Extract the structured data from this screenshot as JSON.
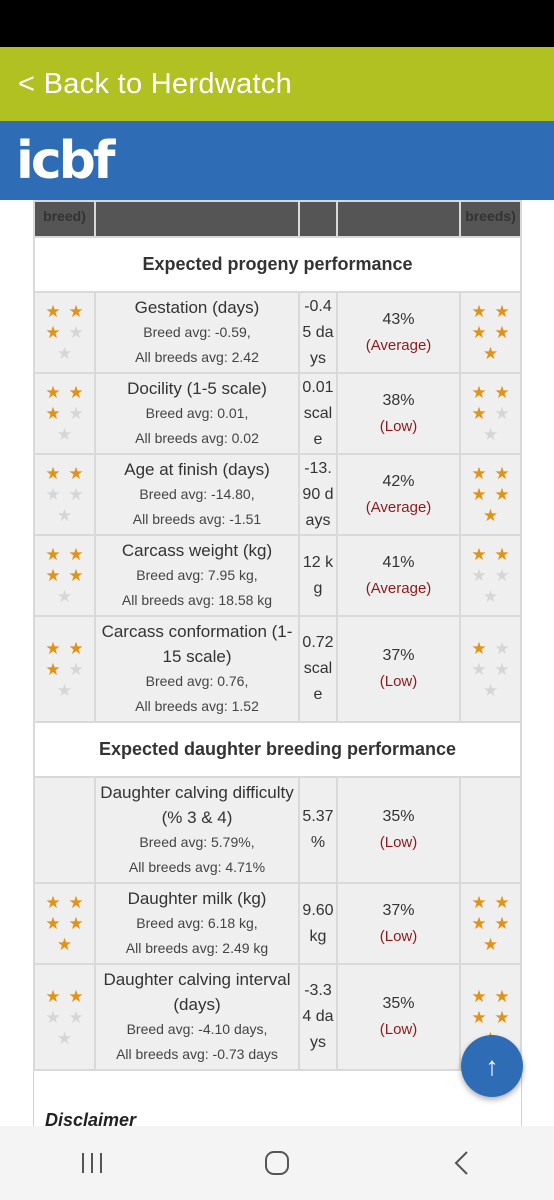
{
  "header": {
    "back_label": "< Back to Herdwatch",
    "logo_text": "icbf"
  },
  "table": {
    "header_left": "breed)",
    "header_right": "breeds)",
    "sections": [
      {
        "title": "Expected progeny performance",
        "rows": [
          {
            "trait": "Gestation (days)",
            "breed_avg": "Breed avg: -0.59,",
            "all_avg": "All breeds avg: 2.42",
            "value": "-0.45 days",
            "pct": "43%",
            "rel": "(Average)",
            "stars_left": 3,
            "stars_right": 5
          },
          {
            "trait": "Docility (1-5 scale)",
            "breed_avg": "Breed avg: 0.01,",
            "all_avg": "All breeds avg: 0.02",
            "value": "0.01 scale",
            "pct": "38%",
            "rel": "(Low)",
            "stars_left": 3,
            "stars_right": 3
          },
          {
            "trait": "Age at finish (days)",
            "breed_avg": "Breed avg: -14.80,",
            "all_avg": "All breeds avg: -1.51",
            "value": "-13.90 days",
            "pct": "42%",
            "rel": "(Average)",
            "stars_left": 2,
            "stars_right": 5
          },
          {
            "trait": "Carcass weight (kg)",
            "breed_avg": "Breed avg: 7.95 kg,",
            "all_avg": "All breeds avg: 18.58 kg",
            "value": "12 kg",
            "pct": "41%",
            "rel": "(Average)",
            "stars_left": 4,
            "stars_right": 2
          },
          {
            "trait": "Carcass conformation (1-15 scale)",
            "breed_avg": "Breed avg: 0.76,",
            "all_avg": "All breeds avg: 1.52",
            "value": "0.72 scale",
            "pct": "37%",
            "rel": "(Low)",
            "stars_left": 3,
            "stars_right": 1
          }
        ]
      },
      {
        "title": "Expected daughter breeding performance",
        "rows": [
          {
            "trait": "Daughter calving difficulty (% 3 & 4)",
            "breed_avg": "Breed avg: 5.79%,",
            "all_avg": "All breeds avg: 4.71%",
            "value": "5.37 %",
            "pct": "35%",
            "rel": "(Low)",
            "stars_left": 0,
            "stars_right": 0
          },
          {
            "trait": "Daughter milk (kg)",
            "breed_avg": "Breed avg: 6.18 kg,",
            "all_avg": "All breeds avg: 2.49 kg",
            "value": "9.60 kg",
            "pct": "37%",
            "rel": "(Low)",
            "stars_left": 5,
            "stars_right": 5
          },
          {
            "trait": "Daughter calving interval (days)",
            "breed_avg": "Breed avg: -4.10 days,",
            "all_avg": "All breeds avg: -0.73 days",
            "value": "-3.34 days",
            "pct": "35%",
            "rel": "(Low)",
            "stars_left": 2,
            "stars_right": 5
          }
        ]
      }
    ]
  },
  "disclaimer_label": "Disclaimer",
  "fab_icon": "arrow-up-icon",
  "colors": {
    "accent_green": "#b0c121",
    "brand_blue": "#2e6db5",
    "star": "#e09317",
    "reliability_text": "#8b1b1b"
  }
}
